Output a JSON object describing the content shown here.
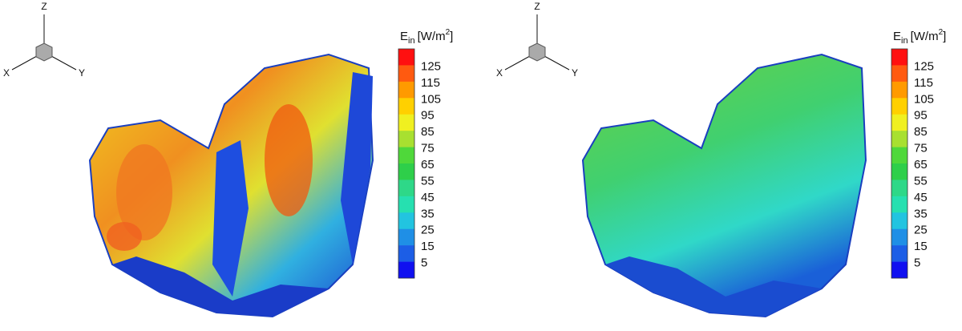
{
  "panels": [
    {
      "triad": {
        "z": "Z",
        "x": "X",
        "y": "Y"
      },
      "colorbar": {
        "symbol": "E",
        "subscript": "in",
        "unit": "[W/m",
        "superscript": "2",
        "close": "]",
        "labels": [
          "125",
          "115",
          "105",
          "95",
          "85",
          "75",
          "65",
          "55",
          "45",
          "35",
          "25",
          "15",
          "5"
        ],
        "colors": [
          "#ff1010",
          "#ff5a10",
          "#ff9a00",
          "#ffd000",
          "#f0f020",
          "#a8e030",
          "#4fd83a",
          "#2ecf4a",
          "#2ed888",
          "#26e0b0",
          "#22c4e0",
          "#1f8fe6",
          "#1c5ee6",
          "#1010f0"
        ]
      }
    },
    {
      "triad": {
        "z": "Z",
        "x": "X",
        "y": "Y"
      },
      "colorbar": {
        "symbol": "E",
        "subscript": "in",
        "unit": "[W/m",
        "superscript": "2",
        "close": "]",
        "labels": [
          "125",
          "115",
          "105",
          "95",
          "85",
          "75",
          "65",
          "55",
          "45",
          "35",
          "25",
          "15",
          "5"
        ],
        "colors": [
          "#ff1010",
          "#ff5a10",
          "#ff9a00",
          "#ffd000",
          "#f0f020",
          "#a8e030",
          "#4fd83a",
          "#2ecf4a",
          "#2ed888",
          "#26e0b0",
          "#22c4e0",
          "#1f8fe6",
          "#1c5ee6",
          "#1010f0"
        ]
      }
    }
  ]
}
